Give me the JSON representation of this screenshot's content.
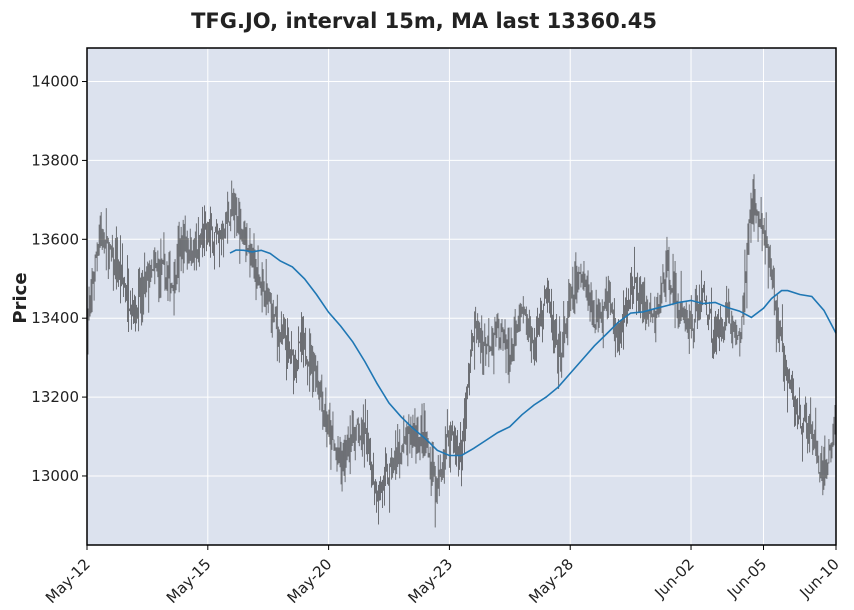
{
  "chart_data": {
    "type": "candlestick",
    "title": "TFG.JO, interval 15m, MA last 13360.45",
    "ylabel": "Price",
    "xlabel": "",
    "ylim": [
      12825,
      14085
    ],
    "y_ticks": [
      13000,
      13200,
      13400,
      13600,
      13800,
      14000
    ],
    "x_range": [
      "2024-05-10",
      "2024-06-10"
    ],
    "x_ticks": [
      {
        "date": "2024-05-10",
        "label": "May-12"
      },
      {
        "date": "2024-05-15",
        "label": "May-15"
      },
      {
        "date": "2024-05-20",
        "label": "May-20"
      },
      {
        "date": "2024-05-25",
        "label": "May-23"
      },
      {
        "date": "2024-05-30",
        "label": "May-28"
      },
      {
        "date": "2024-06-04",
        "label": "Jun-02"
      },
      {
        "date": "2024-06-07",
        "label": "Jun-05"
      },
      {
        "date": "2024-06-10",
        "label": "Jun-10"
      }
    ],
    "grid": true,
    "price_path": [
      [
        "2024-05-10",
        13380
      ],
      [
        "2024-05-10T12:00",
        13620
      ],
      [
        "2024-05-11",
        13550
      ],
      [
        "2024-05-12",
        13420
      ],
      [
        "2024-05-12T12:00",
        13500
      ],
      [
        "2024-05-13",
        13520
      ],
      [
        "2024-05-13T12:00",
        13490
      ],
      [
        "2024-05-14",
        13600
      ],
      [
        "2024-05-14T12:00",
        13560
      ],
      [
        "2024-05-15",
        13620
      ],
      [
        "2024-05-15T12:00",
        13600
      ],
      [
        "2024-05-16",
        13680
      ],
      [
        "2024-05-16T12:00",
        13620
      ],
      [
        "2024-05-17",
        13510
      ],
      [
        "2024-05-17T12:00",
        13440
      ],
      [
        "2024-05-18",
        13350
      ],
      [
        "2024-05-18T12:00",
        13290
      ],
      [
        "2024-05-19",
        13330
      ],
      [
        "2024-05-19T12:00",
        13270
      ],
      [
        "2024-05-20",
        13110
      ],
      [
        "2024-05-20T12:00",
        13020
      ],
      [
        "2024-05-21",
        13120
      ],
      [
        "2024-05-21T12:00",
        13100
      ],
      [
        "2024-05-22",
        12960
      ],
      [
        "2024-05-22T12:00",
        13000
      ],
      [
        "2024-05-23",
        13060
      ],
      [
        "2024-05-23T12:00",
        13110
      ],
      [
        "2024-05-24",
        13080
      ],
      [
        "2024-05-24T12:00",
        12960
      ],
      [
        "2024-05-25",
        13120
      ],
      [
        "2024-05-25T12:00",
        13050
      ],
      [
        "2024-05-26",
        13380
      ],
      [
        "2024-05-26T12:00",
        13330
      ],
      [
        "2024-05-27",
        13380
      ],
      [
        "2024-05-27T12:00",
        13300
      ],
      [
        "2024-05-28",
        13410
      ],
      [
        "2024-05-28T12:00",
        13330
      ],
      [
        "2024-05-29",
        13480
      ],
      [
        "2024-05-29T12:00",
        13280
      ],
      [
        "2024-05-30",
        13440
      ],
      [
        "2024-05-30T12:00",
        13520
      ],
      [
        "2024-05-31",
        13400
      ],
      [
        "2024-05-31T12:00",
        13460
      ],
      [
        "2024-06-01",
        13350
      ],
      [
        "2024-06-01T12:00",
        13480
      ],
      [
        "2024-06-02",
        13440
      ],
      [
        "2024-06-02T12:00",
        13380
      ],
      [
        "2024-06-03",
        13540
      ],
      [
        "2024-06-03T12:00",
        13420
      ],
      [
        "2024-06-04",
        13380
      ],
      [
        "2024-06-04T12:00",
        13460
      ],
      [
        "2024-06-05",
        13340
      ],
      [
        "2024-06-05T12:00",
        13420
      ],
      [
        "2024-06-06",
        13330
      ],
      [
        "2024-06-06T12:00",
        13700
      ],
      [
        "2024-06-07",
        13620
      ],
      [
        "2024-06-07T12:00",
        13420
      ],
      [
        "2024-06-08",
        13230
      ],
      [
        "2024-06-08T12:00",
        13150
      ],
      [
        "2024-06-09",
        13100
      ],
      [
        "2024-06-09T12:00",
        12980
      ],
      [
        "2024-06-10",
        13150
      ]
    ],
    "ma_series": {
      "color": "#1f77b4",
      "points": [
        [
          "2024-05-15T22:00",
          13565
        ],
        [
          "2024-05-16T04:00",
          13573
        ],
        [
          "2024-05-16T12:00",
          13572
        ],
        [
          "2024-05-16T20:00",
          13568
        ],
        [
          "2024-05-17T05:00",
          13572
        ],
        [
          "2024-05-17T14:00",
          13564
        ],
        [
          "2024-05-18",
          13545
        ],
        [
          "2024-05-18T12:00",
          13530
        ],
        [
          "2024-05-19",
          13500
        ],
        [
          "2024-05-19T12:00",
          13460
        ],
        [
          "2024-05-20",
          13415
        ],
        [
          "2024-05-20T12:00",
          13380
        ],
        [
          "2024-05-21",
          13340
        ],
        [
          "2024-05-21T12:00",
          13290
        ],
        [
          "2024-05-22",
          13235
        ],
        [
          "2024-05-22T12:00",
          13185
        ],
        [
          "2024-05-23",
          13150
        ],
        [
          "2024-05-23T12:00",
          13120
        ],
        [
          "2024-05-24",
          13095
        ],
        [
          "2024-05-24T12:00",
          13065
        ],
        [
          "2024-05-25",
          13052
        ],
        [
          "2024-05-25T12:00",
          13052
        ],
        [
          "2024-05-26",
          13070
        ],
        [
          "2024-05-26T12:00",
          13090
        ],
        [
          "2024-05-27",
          13110
        ],
        [
          "2024-05-27T12:00",
          13125
        ],
        [
          "2024-05-28",
          13155
        ],
        [
          "2024-05-28T12:00",
          13180
        ],
        [
          "2024-05-29",
          13200
        ],
        [
          "2024-05-29T12:00",
          13225
        ],
        [
          "2024-05-30",
          13260
        ],
        [
          "2024-05-30T12:00",
          13295
        ],
        [
          "2024-05-31",
          13330
        ],
        [
          "2024-05-31T12:00",
          13360
        ],
        [
          "2024-06-01",
          13390
        ],
        [
          "2024-06-01T12:00",
          13413
        ],
        [
          "2024-06-02",
          13416
        ],
        [
          "2024-06-02T12:00",
          13424
        ],
        [
          "2024-06-03",
          13432
        ],
        [
          "2024-06-03T12:00",
          13440
        ],
        [
          "2024-06-04",
          13445
        ],
        [
          "2024-06-04T12:00",
          13437
        ],
        [
          "2024-06-05",
          13440
        ],
        [
          "2024-06-05T12:00",
          13427
        ],
        [
          "2024-06-06",
          13418
        ],
        [
          "2024-06-06T12:00",
          13402
        ],
        [
          "2024-06-07",
          13425
        ],
        [
          "2024-06-07T08:00",
          13450
        ],
        [
          "2024-06-07T18:00",
          13470
        ],
        [
          "2024-06-08",
          13470
        ],
        [
          "2024-06-08T12:00",
          13460
        ],
        [
          "2024-06-09",
          13455
        ],
        [
          "2024-06-09T12:00",
          13420
        ],
        [
          "2024-06-10",
          13362
        ]
      ]
    }
  },
  "colors": {
    "plot_background": "#dce2ee",
    "grid": "#ffffff",
    "candle": "#222222",
    "axes": "#000000"
  }
}
